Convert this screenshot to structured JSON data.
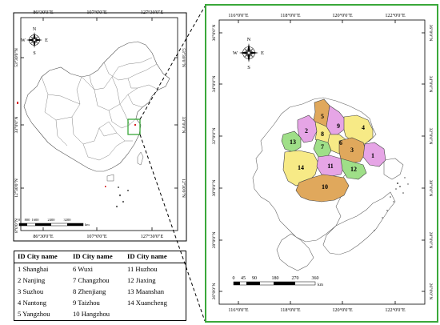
{
  "left_map": {
    "top_ticks": [
      "86°30'0\"E",
      "107°0'0\"E",
      "127°30'0\"E"
    ],
    "bottom_ticks": [
      "86°30'0\"E",
      "107°0'0\"E",
      "127°30'0\"E"
    ],
    "right_ticks": [
      "53°30'0\"N",
      "33°0'0\"N",
      "12°30'0\"N"
    ],
    "left_ticks": [
      "53°30'0\"N",
      "33°0'0\"N",
      "12°30'0\"N",
      "8°0'0\"N"
    ],
    "scale_labels": [
      "0",
      "800",
      "1600",
      "2400",
      "3200"
    ],
    "scale_unit": "km",
    "compass": {
      "N": "N",
      "S": "S",
      "E": "E",
      "W": "W"
    }
  },
  "right_map": {
    "top_ticks": [
      "116°0'0\"E",
      "118°0'0\"E",
      "120°0'0\"E",
      "122°0'0\"E"
    ],
    "bottom_ticks": [
      "116°0'0\"E",
      "118°0'0\"E",
      "120°0'0\"E",
      "122°0'0\"E"
    ],
    "left_ticks": [
      "36°0'0\"N",
      "34°0'0\"N",
      "32°0'0\"N",
      "30°0'0\"N",
      "28°0'0\"N",
      "26°0'0\"N"
    ],
    "right_ticks": [
      "36°0'0\"N",
      "34°0'0\"N",
      "32°0'0\"N",
      "30°0'0\"N",
      "28°0'0\"N",
      "26°0'0\"N"
    ],
    "scale_labels": [
      "0",
      "45",
      "90",
      "180",
      "270",
      "360"
    ],
    "scale_unit": "km",
    "compass": {
      "N": "N",
      "S": "S",
      "E": "E",
      "W": "W"
    },
    "region_labels": [
      "1",
      "2",
      "3",
      "4",
      "5",
      "6",
      "7",
      "8",
      "9",
      "10",
      "11",
      "12",
      "13",
      "14"
    ],
    "colors": {
      "frame": "#3aa83a",
      "pink": "#e6a5e6",
      "orange": "#e0a85c",
      "yellow": "#f7ea86",
      "green": "#9fdf88",
      "outline": "#444444"
    }
  },
  "legend": {
    "headers": [
      "ID City name",
      "ID City name",
      "ID City name"
    ],
    "columns": [
      [
        "1 Shanghai",
        "2 Nanjing",
        "3 Suzhou",
        "4 Nantong",
        "5 Yangzhou"
      ],
      [
        "6 Wuxi",
        "7 Changzhou",
        "8 Zhenjiang",
        "9 Taizhou",
        "10 Hangzhou"
      ],
      [
        "11 Huzhou",
        "12 Jiaxing",
        "13 Maanshan",
        "14 Xuancheng"
      ]
    ]
  }
}
